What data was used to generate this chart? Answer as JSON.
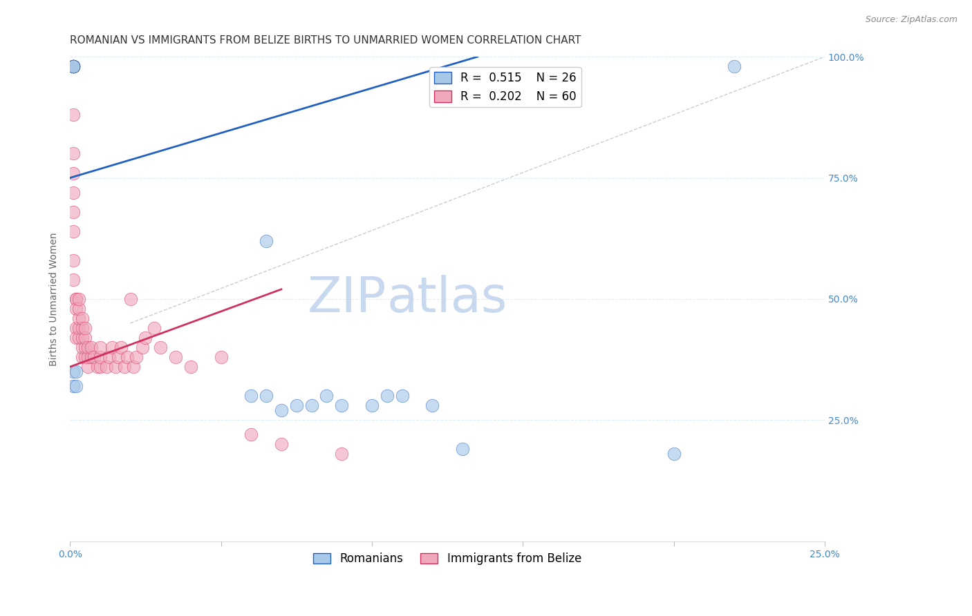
{
  "title": "ROMANIAN VS IMMIGRANTS FROM BELIZE BIRTHS TO UNMARRIED WOMEN CORRELATION CHART",
  "source": "Source: ZipAtlas.com",
  "ylabel": "Births to Unmarried Women",
  "legend_label_blue": "Romanians",
  "legend_label_pink": "Immigrants from Belize",
  "r_blue": 0.515,
  "n_blue": 26,
  "r_pink": 0.202,
  "n_pink": 60,
  "xmin": 0.0,
  "xmax": 0.25,
  "ymin": 0.0,
  "ymax": 1.0,
  "xticks": [
    0.0,
    0.05,
    0.1,
    0.15,
    0.2,
    0.25
  ],
  "xtick_labels": [
    "0.0%",
    "",
    "",
    "",
    "",
    "25.0%"
  ],
  "yticks": [
    0.0,
    0.25,
    0.5,
    0.75,
    1.0
  ],
  "ytick_labels_right": [
    "",
    "25.0%",
    "50.0%",
    "75.0%",
    "100.0%"
  ],
  "blue_color": "#A8C8E8",
  "pink_color": "#F0A8BC",
  "blue_line_color": "#2060C0",
  "pink_line_color": "#D03060",
  "grid_color": "#DDEEFF",
  "watermark_color": "#C8D8EE",
  "blue_scatter_x": [
    0.001,
    0.001,
    0.001,
    0.001,
    0.001,
    0.001,
    0.001,
    0.001,
    0.001,
    0.002,
    0.002,
    0.06,
    0.065,
    0.065,
    0.07,
    0.075,
    0.08,
    0.085,
    0.09,
    0.1,
    0.105,
    0.11,
    0.12,
    0.13,
    0.2,
    0.22
  ],
  "blue_scatter_y": [
    0.98,
    0.98,
    0.98,
    0.98,
    0.98,
    0.98,
    0.98,
    0.32,
    0.35,
    0.32,
    0.35,
    0.3,
    0.3,
    0.62,
    0.27,
    0.28,
    0.28,
    0.3,
    0.28,
    0.28,
    0.3,
    0.3,
    0.28,
    0.19,
    0.18,
    0.98
  ],
  "pink_scatter_x": [
    0.001,
    0.001,
    0.001,
    0.001,
    0.001,
    0.001,
    0.001,
    0.001,
    0.001,
    0.001,
    0.002,
    0.002,
    0.002,
    0.002,
    0.002,
    0.003,
    0.003,
    0.003,
    0.003,
    0.003,
    0.004,
    0.004,
    0.004,
    0.004,
    0.004,
    0.005,
    0.005,
    0.005,
    0.005,
    0.006,
    0.006,
    0.006,
    0.007,
    0.007,
    0.008,
    0.009,
    0.01,
    0.01,
    0.01,
    0.012,
    0.013,
    0.014,
    0.015,
    0.016,
    0.017,
    0.018,
    0.019,
    0.02,
    0.021,
    0.022,
    0.024,
    0.025,
    0.028,
    0.03,
    0.035,
    0.04,
    0.05,
    0.06,
    0.07,
    0.09
  ],
  "pink_scatter_y": [
    0.98,
    0.98,
    0.88,
    0.8,
    0.76,
    0.72,
    0.68,
    0.64,
    0.58,
    0.54,
    0.5,
    0.5,
    0.48,
    0.44,
    0.42,
    0.42,
    0.44,
    0.46,
    0.48,
    0.5,
    0.38,
    0.4,
    0.42,
    0.44,
    0.46,
    0.38,
    0.4,
    0.42,
    0.44,
    0.36,
    0.38,
    0.4,
    0.38,
    0.4,
    0.38,
    0.36,
    0.36,
    0.38,
    0.4,
    0.36,
    0.38,
    0.4,
    0.36,
    0.38,
    0.4,
    0.36,
    0.38,
    0.5,
    0.36,
    0.38,
    0.4,
    0.42,
    0.44,
    0.4,
    0.38,
    0.36,
    0.38,
    0.22,
    0.2,
    0.18
  ],
  "blue_line_x": [
    0.0,
    0.135
  ],
  "blue_line_y": [
    0.75,
    1.0
  ],
  "pink_line_x": [
    0.0,
    0.07
  ],
  "pink_line_y": [
    0.36,
    0.52
  ],
  "ref_line_x": [
    0.02,
    0.25
  ],
  "ref_line_y": [
    0.45,
    1.0
  ],
  "title_fontsize": 11,
  "source_fontsize": 9,
  "axis_label_fontsize": 10,
  "tick_fontsize": 10,
  "legend_fontsize": 12,
  "watermark_zip_fontsize": 52,
  "watermark_atlas_fontsize": 52,
  "background_color": "#FFFFFF"
}
